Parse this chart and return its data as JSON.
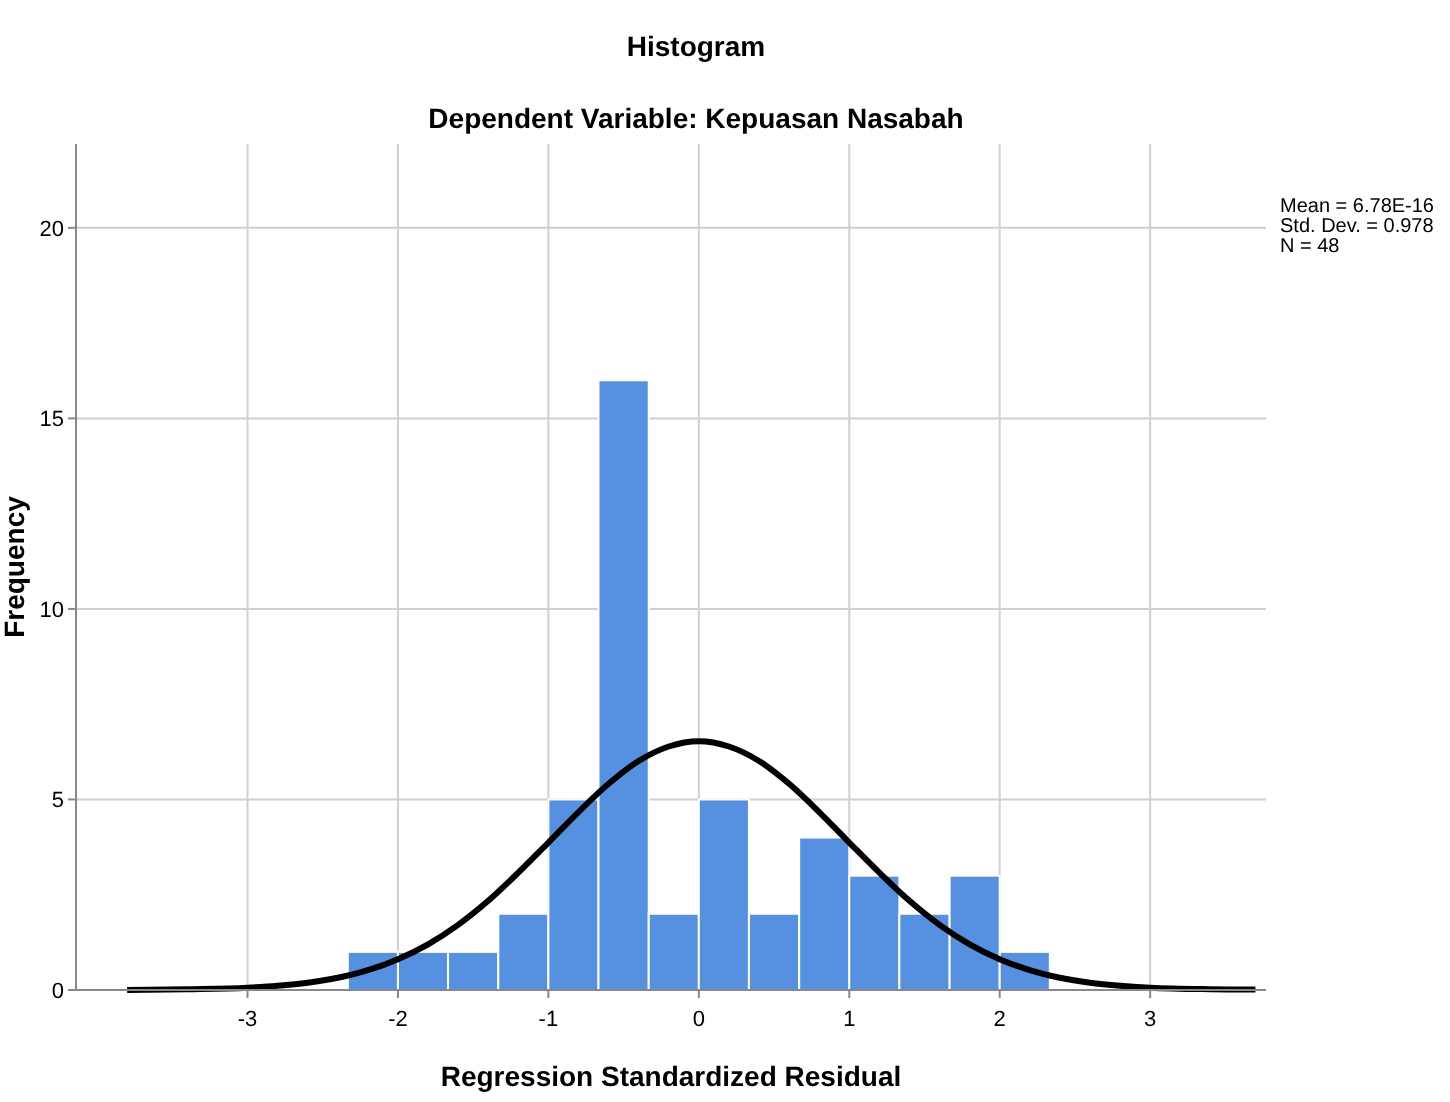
{
  "chart_data": {
    "type": "histogram",
    "title": "Histogram",
    "subtitle": "Dependent Variable: Kepuasan Nasabah",
    "xlabel": "Regression Standardized Residual",
    "ylabel": "Frequency",
    "bins": [
      -2.333,
      -2,
      -1.667,
      -1.333,
      -1,
      -0.667,
      -0.333,
      0,
      0.333,
      0.667,
      1,
      1.333,
      1.667,
      2,
      2.333
    ],
    "values": [
      1,
      1,
      1,
      2,
      5,
      16,
      2,
      5,
      2,
      4,
      3,
      2,
      3,
      1
    ],
    "color": "#5591e0",
    "series": [
      {
        "type": "line",
        "color": "#000000",
        "x": [
          -3.8,
          -3.4,
          -3,
          -2.8,
          -2.6,
          -2.4,
          -2.2,
          -2,
          -1.8,
          -1.6,
          -1.4,
          -1.2,
          -1,
          -0.8,
          -0.6,
          -0.4,
          -0.2,
          0,
          0.2,
          0.4,
          0.6,
          0.8,
          1,
          1.2,
          1.4,
          1.6,
          1.8,
          2,
          2.2,
          2.4,
          2.6,
          2.8,
          3,
          3.4,
          3.7
        ],
        "values": [
          0,
          0.02,
          0.06,
          0.11,
          0.19,
          0.32,
          0.52,
          0.81,
          1.2,
          1.71,
          2.34,
          3.08,
          3.87,
          4.67,
          5.41,
          6.01,
          6.39,
          6.53,
          6.39,
          6.01,
          5.41,
          4.67,
          3.87,
          3.08,
          2.34,
          1.71,
          1.2,
          0.81,
          0.52,
          0.32,
          0.19,
          0.11,
          0.06,
          0.02,
          0.01
        ]
      }
    ],
    "xlim": [
      -4.14,
      3.77
    ],
    "ylim": [
      0,
      22.2
    ],
    "xticks": [
      -3,
      -2,
      -1,
      0,
      1,
      2,
      3
    ],
    "yticks": [
      0,
      5,
      10,
      15,
      20
    ],
    "grid": true,
    "annotations": [
      "Mean = 6.78E-16",
      "Std. Dev. = 0.978",
      "N = 48"
    ]
  }
}
